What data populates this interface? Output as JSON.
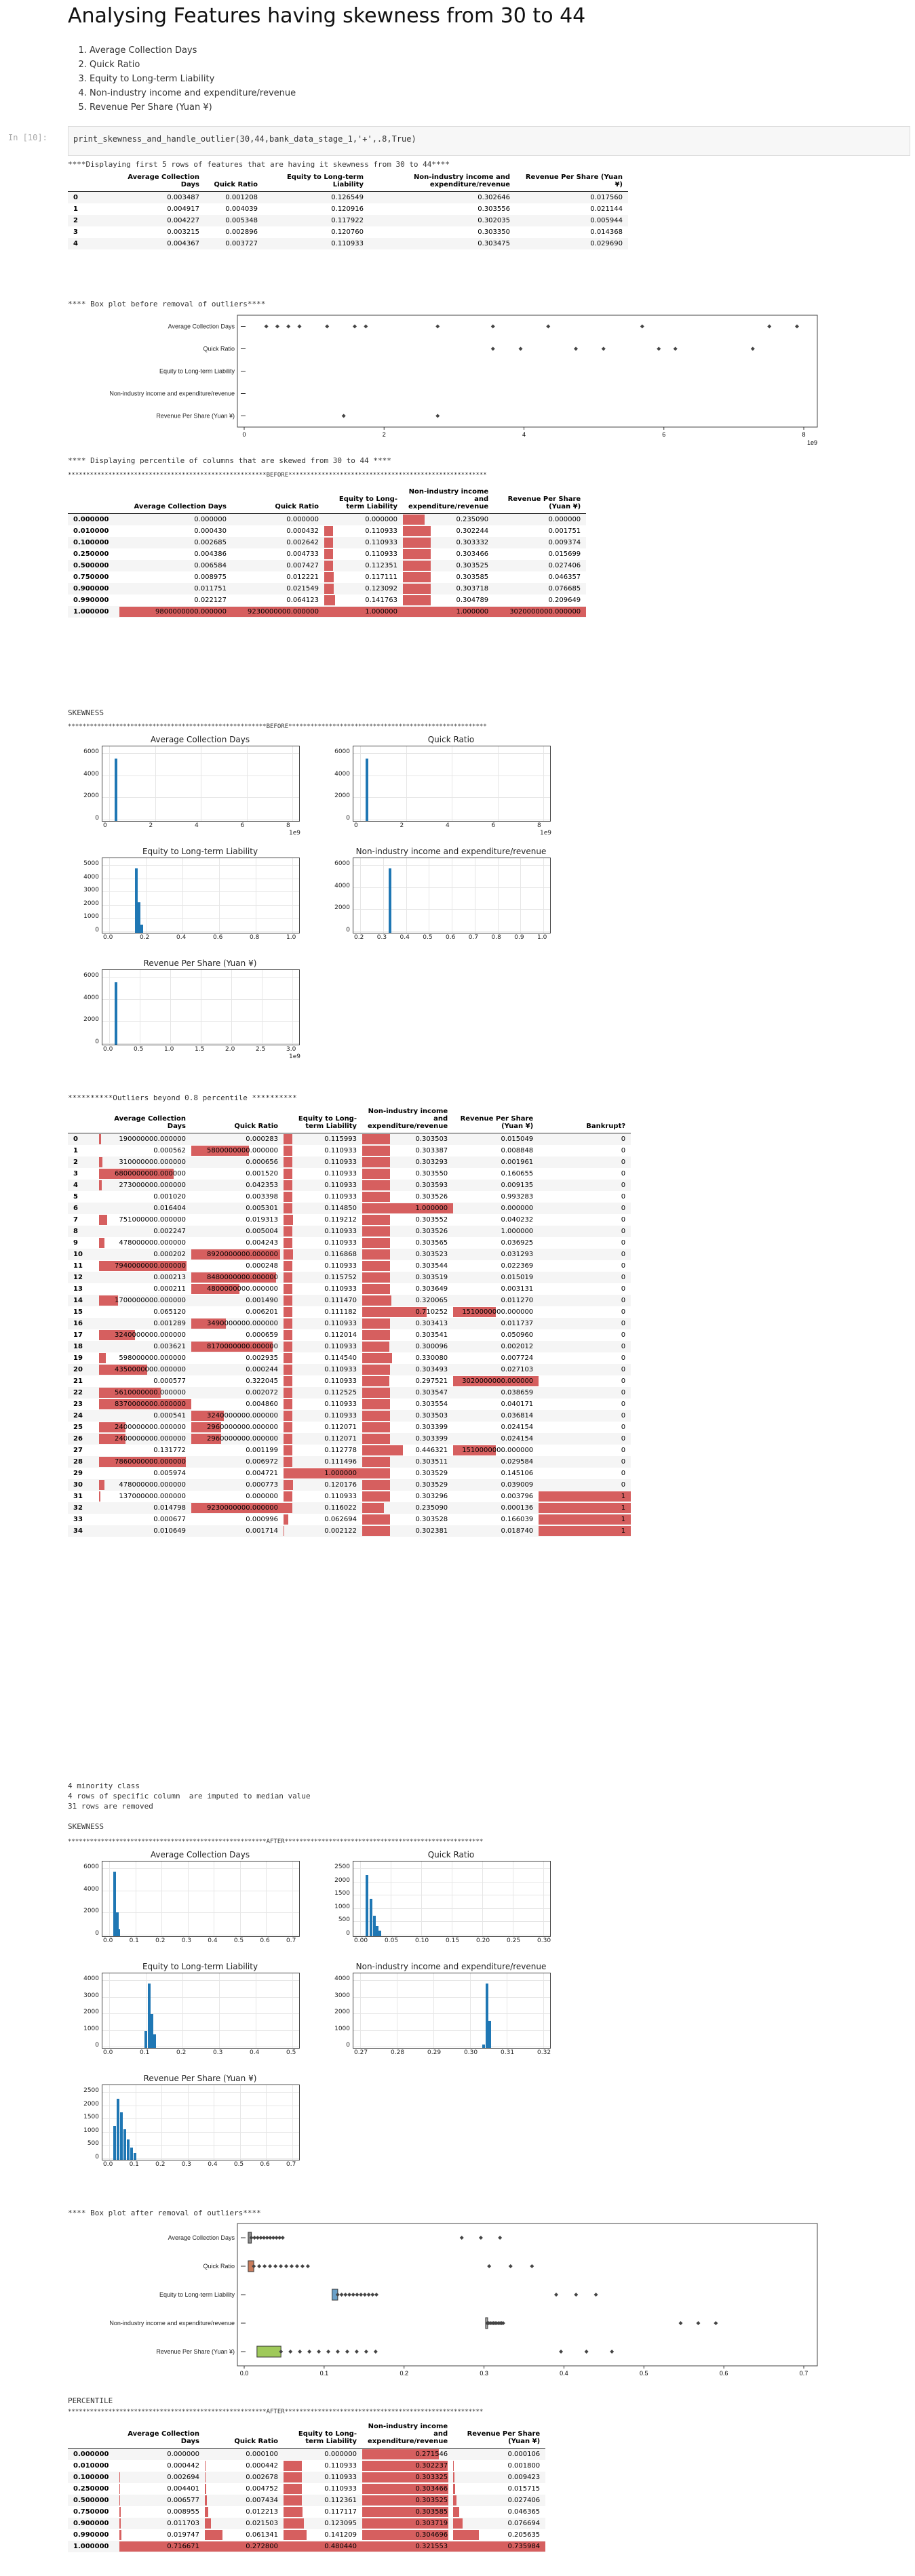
{
  "title": "Analysing Features having skewness from 30 to 44",
  "feature_list": [
    "Average Collection Days",
    "Quick Ratio",
    "Equity to Long-term Liability",
    "Non-industry income and expenditure/revenue",
    "Revenue Per Share (Yuan ¥)"
  ],
  "cell": {
    "prompt": "In [10]:",
    "code_fn": "print_skewness_and_handle_outlier",
    "code_args": "(30,44,bank_data_stage_1,'+',.8,True)"
  },
  "head_msg": "****Displaying first 5 rows of features that are having it skewness from 30 to 44****",
  "head_table": {
    "columns": [
      "",
      "Average Collection Days",
      "Quick Ratio",
      "Equity to Long-term Liability",
      "Non-industry income and expenditure/revenue",
      "Revenue Per Share (Yuan ¥)"
    ],
    "rows": [
      [
        "0",
        "0.003487",
        "0.001208",
        "0.126549",
        "0.302646",
        "0.017560"
      ],
      [
        "1",
        "0.004917",
        "0.004039",
        "0.120916",
        "0.303556",
        "0.021144"
      ],
      [
        "2",
        "0.004227",
        "0.005348",
        "0.117922",
        "0.302035",
        "0.005944"
      ],
      [
        "3",
        "0.003215",
        "0.002896",
        "0.120760",
        "0.303350",
        "0.014368"
      ],
      [
        "4",
        "0.004367",
        "0.003727",
        "0.110933",
        "0.303475",
        "0.029690"
      ]
    ]
  },
  "box_before_msg": "**** Box plot before removal of outliers****",
  "box_before": {
    "labels": [
      "Average Collection Days",
      "Quick Ratio",
      "Equity to Long-term Liability",
      "Non-industry income and expenditure/revenue",
      "Revenue Per Share (Yuan ¥)"
    ],
    "xticks": [
      "0",
      "2",
      "4",
      "6",
      "8"
    ],
    "exp": "1e9"
  },
  "percentile_msg": "**** Displaying percentile of columns that are skewed from 30 to 44 ****",
  "before_banner": "******************************************************BEFORE******************************************************",
  "pct_before": {
    "columns": [
      "",
      "Average Collection Days",
      "Quick Ratio",
      "Equity to Long-term Liability",
      "Non-industry income and expenditure/revenue",
      "Revenue Per Share (Yuan ¥)"
    ],
    "rows": [
      [
        "0.000000",
        "0.000000",
        "0.000000",
        "0.000000",
        "0.235090",
        "0.000000"
      ],
      [
        "0.010000",
        "0.000430",
        "0.000432",
        "0.110933",
        "0.302244",
        "0.001751"
      ],
      [
        "0.100000",
        "0.002685",
        "0.002642",
        "0.110933",
        "0.303332",
        "0.009374"
      ],
      [
        "0.250000",
        "0.004386",
        "0.004733",
        "0.110933",
        "0.303466",
        "0.015699"
      ],
      [
        "0.500000",
        "0.006584",
        "0.007427",
        "0.112351",
        "0.303525",
        "0.027406"
      ],
      [
        "0.750000",
        "0.008975",
        "0.012221",
        "0.117111",
        "0.303585",
        "0.046357"
      ],
      [
        "0.900000",
        "0.011751",
        "0.021549",
        "0.123092",
        "0.303718",
        "0.076685"
      ],
      [
        "0.990000",
        "0.022127",
        "0.064123",
        "0.141763",
        "0.304789",
        "0.209649"
      ],
      [
        "1.000000",
        "9800000000.000000",
        "9230000000.000000",
        "1.000000",
        "1.000000",
        "3020000000.000000"
      ]
    ]
  },
  "skewness_label": "SKEWNESS",
  "hist_before": [
    {
      "title": "Average Collection Days",
      "xticks": [
        "0",
        "2",
        "4",
        "6",
        "8"
      ],
      "exp": "1e9",
      "yticks": [
        "0",
        "2000",
        "4000",
        "6000"
      ]
    },
    {
      "title": "Quick Ratio",
      "xticks": [
        "0",
        "2",
        "4",
        "6",
        "8"
      ],
      "exp": "1e9",
      "yticks": [
        "0",
        "2000",
        "4000",
        "6000"
      ]
    },
    {
      "title": "Equity to Long-term Liability",
      "xticks": [
        "0.0",
        "0.2",
        "0.4",
        "0.6",
        "0.8",
        "1.0"
      ],
      "exp": "",
      "yticks": [
        "0",
        "1000",
        "2000",
        "3000",
        "4000",
        "5000"
      ]
    },
    {
      "title": "Non-industry income and expenditure/revenue",
      "xticks": [
        "0.2",
        "0.3",
        "0.4",
        "0.5",
        "0.6",
        "0.7",
        "0.8",
        "0.9",
        "1.0"
      ],
      "exp": "",
      "yticks": [
        "0",
        "2000",
        "4000",
        "6000"
      ]
    },
    {
      "title": "Revenue Per Share (Yuan ¥)",
      "xticks": [
        "0.0",
        "0.5",
        "1.0",
        "1.5",
        "2.0",
        "2.5",
        "3.0"
      ],
      "exp": "1e9",
      "yticks": [
        "0",
        "2000",
        "4000",
        "6000"
      ]
    }
  ],
  "outliers_msg": "**********Outliers beyond 0.8 percentile **********",
  "outliers_table": {
    "columns": [
      "",
      "Average Collection Days",
      "Quick Ratio",
      "Equity to Long-term Liability",
      "Non-industry income and expenditure/revenue",
      "Revenue Per Share (Yuan ¥)",
      "Bankrupt?"
    ],
    "rows": [
      [
        "0",
        "190000000.000000",
        "0.000283",
        "0.115993",
        "0.303503",
        "0.015049",
        "0"
      ],
      [
        "1",
        "0.000562",
        "5800000000.000000",
        "0.110933",
        "0.303387",
        "0.008848",
        "0"
      ],
      [
        "2",
        "310000000.000000",
        "0.000656",
        "0.110933",
        "0.303293",
        "0.001961",
        "0"
      ],
      [
        "3",
        "6800000000.000000",
        "0.001520",
        "0.110933",
        "0.303550",
        "0.160655",
        "0"
      ],
      [
        "4",
        "273000000.000000",
        "0.042353",
        "0.110933",
        "0.303593",
        "0.009135",
        "0"
      ],
      [
        "5",
        "0.001020",
        "0.003398",
        "0.110933",
        "0.303526",
        "0.993283",
        "0"
      ],
      [
        "6",
        "0.016404",
        "0.005301",
        "0.114850",
        "1.000000",
        "0.000000",
        "0"
      ],
      [
        "7",
        "751000000.000000",
        "0.019313",
        "0.119212",
        "0.303552",
        "0.040232",
        "0"
      ],
      [
        "8",
        "0.002247",
        "0.005004",
        "0.110933",
        "0.303526",
        "1.000000",
        "0"
      ],
      [
        "9",
        "478000000.000000",
        "0.004243",
        "0.110933",
        "0.303565",
        "0.036925",
        "0"
      ],
      [
        "10",
        "0.000202",
        "8920000000.000000",
        "0.116868",
        "0.303523",
        "0.031293",
        "0"
      ],
      [
        "11",
        "7940000000.000000",
        "0.000248",
        "0.110933",
        "0.303544",
        "0.022369",
        "0"
      ],
      [
        "12",
        "0.000213",
        "8480000000.000000",
        "0.115752",
        "0.303519",
        "0.015019",
        "0"
      ],
      [
        "13",
        "0.000211",
        "4800000000.000000",
        "0.110933",
        "0.303649",
        "0.003131",
        "0"
      ],
      [
        "14",
        "1700000000.000000",
        "0.001490",
        "0.111470",
        "0.320065",
        "0.011270",
        "0"
      ],
      [
        "15",
        "0.065120",
        "0.006201",
        "0.111182",
        "0.710252",
        "1510000000.000000",
        "0"
      ],
      [
        "16",
        "0.001289",
        "3490000000.000000",
        "0.110933",
        "0.303413",
        "0.011737",
        "0"
      ],
      [
        "17",
        "3240000000.000000",
        "0.000659",
        "0.112014",
        "0.303541",
        "0.050960",
        "0"
      ],
      [
        "18",
        "0.003621",
        "8170000000.000000",
        "0.110933",
        "0.300096",
        "0.002012",
        "0"
      ],
      [
        "19",
        "598000000.000000",
        "0.002935",
        "0.114540",
        "0.330080",
        "0.007724",
        "0"
      ],
      [
        "20",
        "4350000000.000000",
        "0.000244",
        "0.110933",
        "0.303493",
        "0.027103",
        "0"
      ],
      [
        "21",
        "0.000577",
        "0.322045",
        "0.110933",
        "0.297521",
        "3020000000.000000",
        "0"
      ],
      [
        "22",
        "5610000000.000000",
        "0.002072",
        "0.112525",
        "0.303547",
        "0.038659",
        "0"
      ],
      [
        "23",
        "8370000000.000000",
        "0.004860",
        "0.110933",
        "0.303554",
        "0.040171",
        "0"
      ],
      [
        "24",
        "0.000541",
        "3240000000.000000",
        "0.110933",
        "0.303503",
        "0.036814",
        "0"
      ],
      [
        "25",
        "2400000000.000000",
        "2960000000.000000",
        "0.112071",
        "0.303399",
        "0.024154",
        "0"
      ],
      [
        "26",
        "2400000000.000000",
        "2960000000.000000",
        "0.112071",
        "0.303399",
        "0.024154",
        "0"
      ],
      [
        "27",
        "0.131772",
        "0.001199",
        "0.112778",
        "0.446321",
        "1510000000.000000",
        "0"
      ],
      [
        "28",
        "7860000000.000000",
        "0.006972",
        "0.111496",
        "0.303511",
        "0.029584",
        "0"
      ],
      [
        "29",
        "0.005974",
        "0.004721",
        "1.000000",
        "0.303529",
        "0.145106",
        "0"
      ],
      [
        "30",
        "478000000.000000",
        "0.000773",
        "0.120176",
        "0.303529",
        "0.039009",
        "0"
      ],
      [
        "31",
        "137000000.000000",
        "0.000000",
        "0.110933",
        "0.303296",
        "0.003796",
        "1"
      ],
      [
        "32",
        "0.014798",
        "9230000000.000000",
        "0.116022",
        "0.235090",
        "0.000136",
        "1"
      ],
      [
        "33",
        "0.000677",
        "0.000996",
        "0.062694",
        "0.303528",
        "0.166039",
        "1"
      ],
      [
        "34",
        "0.010649",
        "0.001714",
        "0.002122",
        "0.302381",
        "0.018740",
        "1"
      ]
    ]
  },
  "summary_lines": [
    "4 minority class",
    "4 rows of specific column  are imputed to median value",
    "31 rows are removed"
  ],
  "after_banner": "******************************************************AFTER******************************************************",
  "hist_after": [
    {
      "title": "Average Collection Days",
      "xticks": [
        "0.0",
        "0.1",
        "0.2",
        "0.3",
        "0.4",
        "0.5",
        "0.6",
        "0.7"
      ],
      "yticks": [
        "0",
        "2000",
        "4000",
        "6000"
      ]
    },
    {
      "title": "Quick Ratio",
      "xticks": [
        "0.00",
        "0.05",
        "0.10",
        "0.15",
        "0.20",
        "0.25",
        "0.30"
      ],
      "yticks": [
        "0",
        "500",
        "1000",
        "1500",
        "2000",
        "2500"
      ]
    },
    {
      "title": "Equity to Long-term Liability",
      "xticks": [
        "0.0",
        "0.1",
        "0.2",
        "0.3",
        "0.4",
        "0.5"
      ],
      "yticks": [
        "0",
        "1000",
        "2000",
        "3000",
        "4000"
      ]
    },
    {
      "title": "Non-industry income and expenditure/revenue",
      "xticks": [
        "0.27",
        "0.28",
        "0.29",
        "0.30",
        "0.31",
        "0.32"
      ],
      "yticks": [
        "0",
        "1000",
        "2000",
        "3000",
        "4000"
      ]
    },
    {
      "title": "Revenue Per Share (Yuan ¥)",
      "xticks": [
        "0.0",
        "0.1",
        "0.2",
        "0.3",
        "0.4",
        "0.5",
        "0.6",
        "0.7"
      ],
      "yticks": [
        "0",
        "500",
        "1000",
        "1500",
        "2000",
        "2500"
      ]
    }
  ],
  "box_after_msg": "**** Box plot after removal of outliers****",
  "box_after": {
    "labels": [
      "Average Collection Days",
      "Quick Ratio",
      "Equity to Long-term Liability",
      "Non-industry income and expenditure/revenue",
      "Revenue Per Share (Yuan ¥)"
    ],
    "xticks": [
      "0.0",
      "0.1",
      "0.2",
      "0.3",
      "0.4",
      "0.5",
      "0.6",
      "0.7"
    ]
  },
  "percentile_label": "PERCENTILE",
  "pct_after": {
    "columns": [
      "",
      "Average Collection Days",
      "Quick Ratio",
      "Equity to Long-term Liability",
      "Non-industry income and expenditure/revenue",
      "Revenue Per Share (Yuan ¥)"
    ],
    "rows": [
      [
        "0.000000",
        "0.000000",
        "0.000100",
        "0.000000",
        "0.271546",
        "0.000106"
      ],
      [
        "0.010000",
        "0.000442",
        "0.000442",
        "0.110933",
        "0.302237",
        "0.001800"
      ],
      [
        "0.100000",
        "0.002694",
        "0.002678",
        "0.110933",
        "0.303325",
        "0.009423"
      ],
      [
        "0.250000",
        "0.004401",
        "0.004752",
        "0.110933",
        "0.303466",
        "0.015715"
      ],
      [
        "0.500000",
        "0.006577",
        "0.007434",
        "0.112361",
        "0.303525",
        "0.027406"
      ],
      [
        "0.750000",
        "0.008955",
        "0.012213",
        "0.117117",
        "0.303585",
        "0.046365"
      ],
      [
        "0.900000",
        "0.011703",
        "0.021503",
        "0.123095",
        "0.303719",
        "0.076694"
      ],
      [
        "0.990000",
        "0.019747",
        "0.061341",
        "0.141209",
        "0.304696",
        "0.205635"
      ],
      [
        "1.000000",
        "0.716671",
        "0.272800",
        "0.480440",
        "0.321553",
        "0.735984"
      ]
    ]
  }
}
